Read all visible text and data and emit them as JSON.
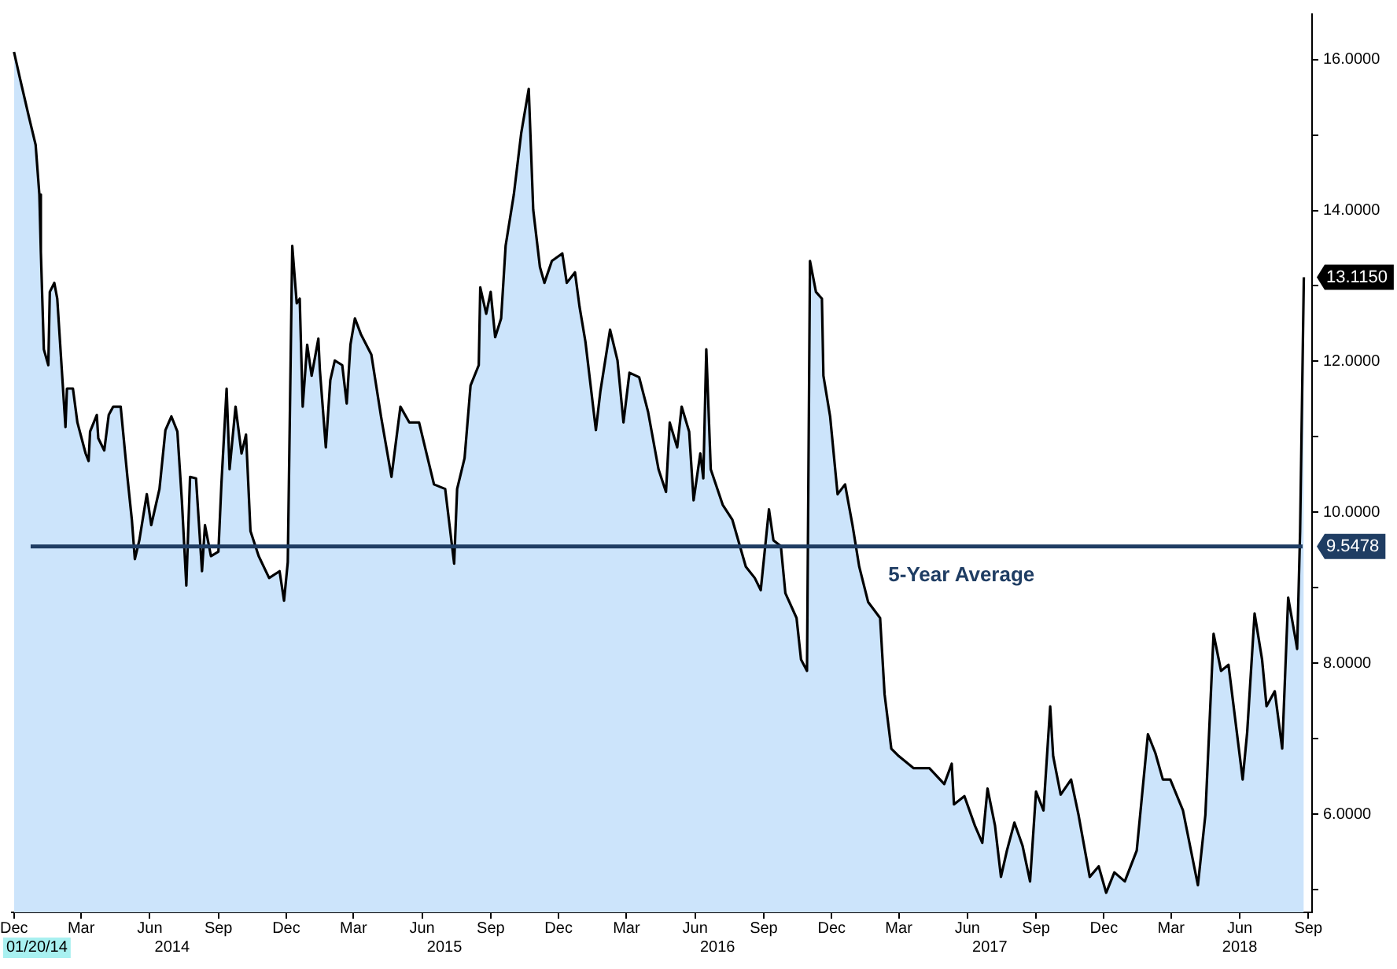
{
  "chart_data": {
    "type": "area",
    "x": [
      "2013-12-01",
      "2013-12-09",
      "2013-12-21",
      "2013-12-30",
      "2014-01-04",
      "2014-01-06",
      "2014-01-10",
      "2014-01-16",
      "2014-01-18",
      "2014-01-24",
      "2014-01-28",
      "2014-02-08",
      "2014-02-10",
      "2014-02-18",
      "2014-02-24",
      "2014-03-07",
      "2014-03-11",
      "2014-03-13",
      "2014-03-22",
      "2014-03-24",
      "2014-04-01",
      "2014-04-07",
      "2014-04-13",
      "2014-04-23",
      "2014-05-02",
      "2014-05-08",
      "2014-05-12",
      "2014-05-18",
      "2014-05-28",
      "2014-06-03",
      "2014-06-14",
      "2014-06-22",
      "2014-06-30",
      "2014-07-08",
      "2014-07-14",
      "2014-07-20",
      "2014-07-25",
      "2014-08-02",
      "2014-08-10",
      "2014-08-14",
      "2014-08-22",
      "2014-09-01",
      "2014-09-05",
      "2014-09-12",
      "2014-09-16",
      "2014-09-24",
      "2014-10-02",
      "2014-10-08",
      "2014-10-14",
      "2014-10-25",
      "2014-11-08",
      "2014-11-22",
      "2014-11-28",
      "2014-12-03",
      "2014-12-09",
      "2014-12-15",
      "2014-12-19",
      "2014-12-23",
      "2014-12-29",
      "2015-01-04",
      "2015-01-13",
      "2015-01-15",
      "2015-01-23",
      "2015-01-29",
      "2015-02-04",
      "2015-02-14",
      "2015-02-20",
      "2015-02-25",
      "2015-03-03",
      "2015-03-11",
      "2015-03-25",
      "2015-04-07",
      "2015-04-21",
      "2015-05-03",
      "2015-05-15",
      "2015-05-28",
      "2015-06-07",
      "2015-06-17",
      "2015-07-02",
      "2015-07-14",
      "2015-07-18",
      "2015-07-28",
      "2015-08-05",
      "2015-08-16",
      "2015-08-18",
      "2015-08-26",
      "2015-09-01",
      "2015-09-07",
      "2015-09-15",
      "2015-09-21",
      "2015-10-02",
      "2015-10-12",
      "2015-10-22",
      "2015-10-28",
      "2015-11-06",
      "2015-11-12",
      "2015-11-22",
      "2015-12-06",
      "2015-12-12",
      "2015-12-23",
      "2015-12-29",
      "2016-01-06",
      "2016-01-20",
      "2016-01-26",
      "2016-02-08",
      "2016-02-18",
      "2016-02-26",
      "2016-03-05",
      "2016-03-18",
      "2016-03-30",
      "2016-04-13",
      "2016-04-23",
      "2016-04-28",
      "2016-05-08",
      "2016-05-14",
      "2016-05-24",
      "2016-05-30",
      "2016-06-08",
      "2016-06-12",
      "2016-06-16",
      "2016-06-22",
      "2016-07-08",
      "2016-07-21",
      "2016-08-08",
      "2016-08-20",
      "2016-08-28",
      "2016-09-08",
      "2016-09-14",
      "2016-09-24",
      "2016-09-30",
      "2016-10-15",
      "2016-10-21",
      "2016-10-29",
      "2016-11-02",
      "2016-11-10",
      "2016-11-18",
      "2016-11-20",
      "2016-11-29",
      "2016-12-09",
      "2016-12-19",
      "2016-12-29",
      "2017-01-07",
      "2017-01-19",
      "2017-02-04",
      "2017-02-10",
      "2017-02-19",
      "2017-03-01",
      "2017-03-21",
      "2017-04-11",
      "2017-05-01",
      "2017-05-11",
      "2017-05-14",
      "2017-05-28",
      "2017-06-11",
      "2017-06-21",
      "2017-06-28",
      "2017-07-08",
      "2017-07-16",
      "2017-07-24",
      "2017-08-03",
      "2017-08-14",
      "2017-08-24",
      "2017-09-01",
      "2017-09-11",
      "2017-09-20",
      "2017-09-24",
      "2017-10-04",
      "2017-10-18",
      "2017-10-28",
      "2017-11-12",
      "2017-11-24",
      "2017-12-04",
      "2017-12-15",
      "2017-12-29",
      "2018-01-14",
      "2018-01-29",
      "2018-02-08",
      "2018-02-18",
      "2018-02-28",
      "2018-03-17",
      "2018-04-06",
      "2018-04-16",
      "2018-04-27",
      "2018-05-07",
      "2018-05-17",
      "2018-06-05",
      "2018-06-11",
      "2018-06-21",
      "2018-07-01",
      "2018-07-07",
      "2018-07-18",
      "2018-07-28",
      "2018-08-05",
      "2018-08-15",
      "2018-08-17",
      "2018-08-21",
      "2018-08-26"
    ],
    "series": [
      {
        "color": "#000000",
        "values": [
          16.1,
          15.75,
          15.24,
          14.87,
          14.21,
          13.45,
          12.16,
          11.95,
          12.92,
          13.04,
          12.83,
          11.13,
          11.64,
          11.64,
          11.19,
          10.78,
          10.68,
          11.07,
          11.29,
          10.98,
          10.82,
          11.29,
          11.4,
          11.4,
          10.47,
          9.9,
          9.38,
          9.63,
          10.24,
          9.83,
          10.31,
          11.09,
          11.27,
          11.07,
          10.16,
          9.03,
          10.47,
          10.45,
          9.22,
          9.83,
          9.42,
          9.48,
          10.37,
          11.64,
          10.57,
          11.4,
          10.78,
          11.03,
          9.75,
          9.42,
          9.13,
          9.22,
          8.83,
          9.34,
          13.53,
          12.77,
          12.83,
          11.4,
          12.22,
          11.81,
          12.3,
          11.89,
          10.86,
          11.75,
          12.01,
          11.95,
          11.44,
          12.22,
          12.57,
          12.36,
          12.09,
          11.27,
          10.47,
          11.4,
          11.19,
          11.19,
          10.78,
          10.37,
          10.31,
          9.32,
          10.31,
          10.72,
          11.68,
          11.95,
          12.98,
          12.63,
          12.92,
          12.32,
          12.57,
          13.53,
          14.21,
          15.03,
          15.61,
          14.01,
          13.25,
          13.04,
          13.33,
          13.43,
          13.04,
          13.18,
          12.73,
          12.26,
          11.09,
          11.6,
          12.42,
          12.01,
          11.19,
          11.85,
          11.79,
          11.33,
          10.57,
          10.27,
          11.19,
          10.86,
          11.4,
          11.07,
          10.16,
          10.78,
          10.45,
          12.16,
          10.57,
          10.1,
          9.9,
          9.28,
          9.13,
          8.97,
          10.04,
          9.63,
          9.55,
          8.93,
          8.6,
          8.05,
          7.9,
          13.33,
          12.92,
          12.83,
          11.81,
          11.27,
          10.24,
          10.37,
          9.83,
          9.28,
          8.81,
          8.6,
          7.59,
          6.87,
          6.77,
          6.61,
          6.61,
          6.4,
          6.67,
          6.13,
          6.24,
          5.85,
          5.62,
          6.34,
          5.85,
          5.17,
          5.52,
          5.89,
          5.58,
          5.11,
          6.3,
          6.05,
          7.43,
          6.77,
          6.26,
          6.46,
          5.99,
          5.17,
          5.31,
          4.96,
          5.23,
          5.11,
          5.52,
          7.06,
          6.81,
          6.46,
          6.46,
          6.05,
          5.06,
          5.99,
          8.39,
          7.9,
          7.98,
          6.46,
          7.08,
          8.66,
          8.05,
          7.43,
          7.63,
          6.87,
          8.87,
          8.31,
          8.19,
          9.75,
          13.115
        ]
      }
    ],
    "xlim": [
      "2013-11-28",
      "2018-09-06"
    ],
    "xticks": [
      {
        "value": "2013-12-01",
        "label": "Dec"
      },
      {
        "value": "2014-03-01",
        "label": "Mar"
      },
      {
        "value": "2014-06-01",
        "label": "Jun"
      },
      {
        "value": "2014-09-01",
        "label": "Sep"
      },
      {
        "value": "2014-12-01",
        "label": "Dec"
      },
      {
        "value": "2015-03-01",
        "label": "Mar"
      },
      {
        "value": "2015-06-01",
        "label": "Jun"
      },
      {
        "value": "2015-09-01",
        "label": "Sep"
      },
      {
        "value": "2015-12-01",
        "label": "Dec"
      },
      {
        "value": "2016-03-01",
        "label": "Mar"
      },
      {
        "value": "2016-06-01",
        "label": "Jun"
      },
      {
        "value": "2016-09-01",
        "label": "Sep"
      },
      {
        "value": "2016-12-01",
        "label": "Dec"
      },
      {
        "value": "2017-03-01",
        "label": "Mar"
      },
      {
        "value": "2017-06-01",
        "label": "Jun"
      },
      {
        "value": "2017-09-01",
        "label": "Sep"
      },
      {
        "value": "2017-12-01",
        "label": "Dec"
      },
      {
        "value": "2018-03-01",
        "label": "Mar"
      },
      {
        "value": "2018-06-01",
        "label": "Jun"
      },
      {
        "value": "2018-09-01",
        "label": "Sep"
      }
    ],
    "x2lim": [
      "2013-11-28",
      "2018-09-06"
    ],
    "x2ticks": [
      {
        "value": "2014-07-01",
        "label": "2014"
      },
      {
        "value": "2015-07-01",
        "label": "2015"
      },
      {
        "value": "2016-07-01",
        "label": "2016"
      },
      {
        "value": "2017-07-01",
        "label": "2017"
      },
      {
        "value": "2018-06-01",
        "label": "2018"
      }
    ],
    "ylim": [
      4.7,
      16.6
    ],
    "yticks": [
      {
        "value": 5,
        "label": null
      },
      {
        "value": 6,
        "label": "6.0000"
      },
      {
        "value": 7,
        "label": null
      },
      {
        "value": 8,
        "label": "8.0000"
      },
      {
        "value": 9,
        "label": null
      },
      {
        "value": 10,
        "label": "10.0000"
      },
      {
        "value": 11,
        "label": null
      },
      {
        "value": 12,
        "label": "12.0000"
      },
      {
        "value": 13,
        "label": null
      },
      {
        "value": 14,
        "label": "14.0000"
      },
      {
        "value": 15,
        "label": null
      },
      {
        "value": 16,
        "label": "16.0000"
      }
    ],
    "ref_lines": [
      {
        "axis": "y",
        "value": 9.5478,
        "label": "5-Year Average",
        "color": "#1f3d63"
      }
    ],
    "annotations": [
      {
        "text": "13.1150",
        "x": "2018-08-26",
        "y": 13.115
      },
      {
        "text": "9.5478",
        "x": "2018-08-26",
        "y": 9.5478
      },
      "01/20/14"
    ],
    "grid": false,
    "legend": false,
    "marker": "none",
    "line_style": "solid"
  }
}
